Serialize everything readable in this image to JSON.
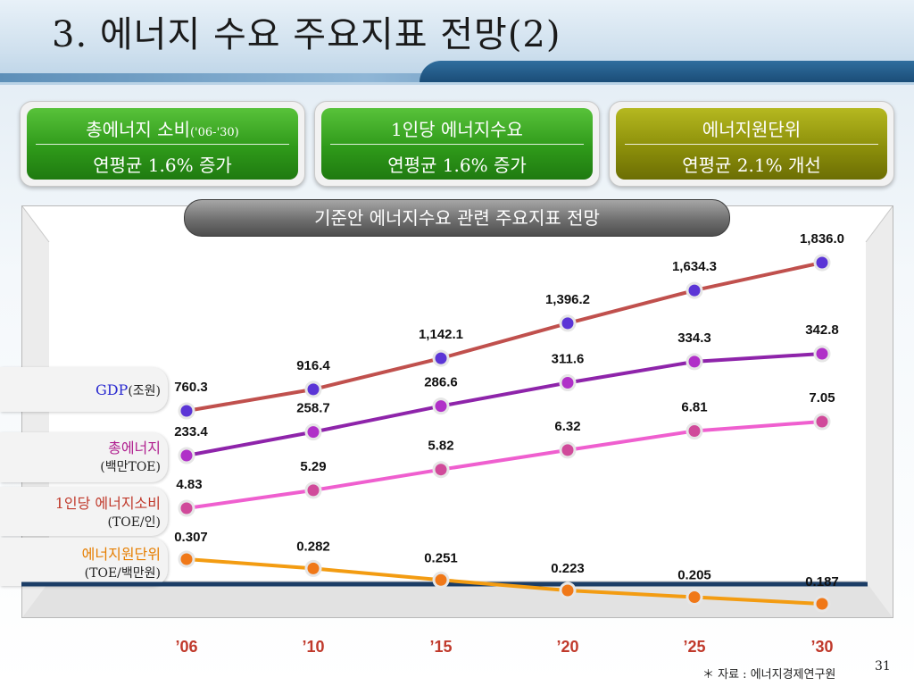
{
  "slide": {
    "title": "3. 에너지 수요 주요지표 전망(2)",
    "page_number": "31",
    "footnote": "＊ 자료 : 에너지경제연구원"
  },
  "summary_boxes": [
    {
      "line1": "총에너지 소비",
      "line1_suffix": "('06-'30)",
      "line2": "연평균 1.6% 증가",
      "color": "#2f9a1a"
    },
    {
      "line1": "1인당 에너지수요",
      "line1_suffix": "",
      "line2": "연평균 1.6% 증가",
      "color": "#2f9a1a"
    },
    {
      "line1": "에너지원단위",
      "line1_suffix": "",
      "line2": "연평균 2.1% 개선",
      "color": "#8c8f0a"
    }
  ],
  "chart_header": "기준안 에너지수요 관련 주요지표 전망",
  "series_labels": [
    {
      "name": "GDP",
      "unit": "(조원)",
      "color": "#2a2ad0"
    },
    {
      "name": "총에너지",
      "unit": "(백만TOE)",
      "color": "#b0208f"
    },
    {
      "name": "1인당 에너지소비",
      "unit": "(TOE/인)",
      "color": "#c0392b"
    },
    {
      "name": "에너지원단위",
      "unit": "(TOE/백만원)",
      "color": "#e67e00"
    }
  ],
  "chart_data": {
    "type": "line",
    "categories": [
      "’06",
      "’10",
      "’15",
      "’20",
      "’25",
      "’30"
    ],
    "series": [
      {
        "name": "GDP",
        "values": [
          760.3,
          916.4,
          1142.1,
          1396.2,
          1634.3,
          1836.0
        ],
        "labels": [
          "760.3",
          "916.4",
          "1,142.1",
          "1,396.2",
          "1,634.3",
          "1,836.0"
        ],
        "line_color": "#c0504d",
        "marker_color": "#5b35d6"
      },
      {
        "name": "총에너지",
        "values": [
          233.4,
          258.7,
          286.6,
          311.6,
          334.3,
          342.8
        ],
        "labels": [
          "233.4",
          "258.7",
          "286.6",
          "311.6",
          "334.3",
          "342.8"
        ],
        "line_color": "#8e24aa",
        "marker_color": "#b030c8"
      },
      {
        "name": "1인당 에너지소비",
        "values": [
          4.83,
          5.29,
          5.82,
          6.32,
          6.81,
          7.05
        ],
        "labels": [
          "4.83",
          "5.29",
          "5.82",
          "6.32",
          "6.81",
          "7.05"
        ],
        "line_color": "#ef5fcf",
        "marker_color": "#d04a9a"
      },
      {
        "name": "에너지원단위",
        "values": [
          0.307,
          0.282,
          0.251,
          0.223,
          0.205,
          0.187
        ],
        "labels": [
          "0.307",
          "0.282",
          "0.251",
          "0.223",
          "0.205",
          "0.187"
        ],
        "line_color": "#f39c12",
        "marker_color": "#f07818"
      }
    ],
    "grid": false,
    "legend": "left"
  }
}
